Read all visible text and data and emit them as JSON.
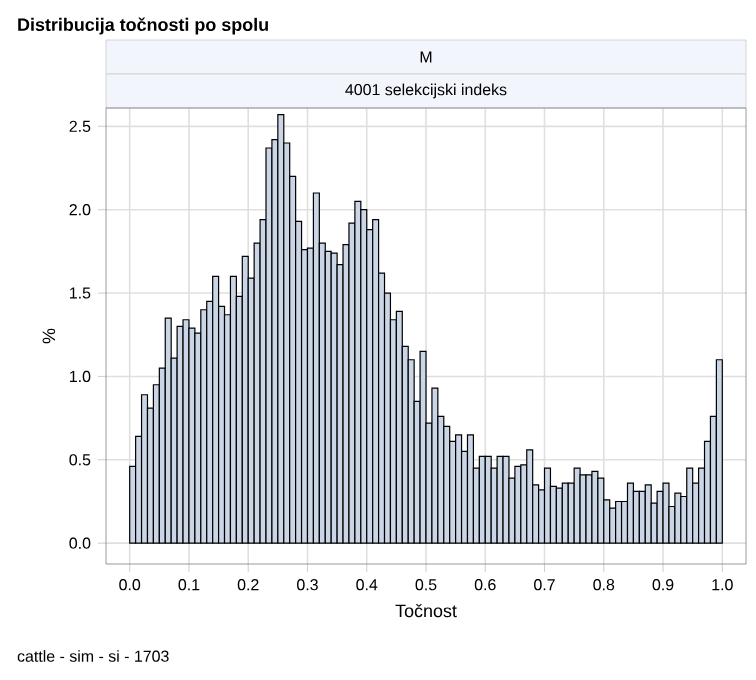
{
  "chart_data": {
    "type": "histogram",
    "title": "Distribucija točnosti po spolu",
    "subtitle": "M",
    "annotations": [
      "4001 selekcijski indeks",
      "cattle - sim - si - 1703"
    ],
    "xlabel": "Točnost",
    "ylabel": "%",
    "bins": [
      0,
      0.01,
      0.02,
      0.03,
      0.04,
      0.05,
      0.06,
      0.07,
      0.08,
      0.09,
      0.1,
      0.11,
      0.12,
      0.13,
      0.14,
      0.15,
      0.16,
      0.17,
      0.18,
      0.19,
      0.2,
      0.21,
      0.22,
      0.23,
      0.24,
      0.25,
      0.26,
      0.27,
      0.28,
      0.29,
      0.3,
      0.31,
      0.32,
      0.33,
      0.34,
      0.35,
      0.36,
      0.37,
      0.38,
      0.39,
      0.4,
      0.41,
      0.42,
      0.43,
      0.44,
      0.45,
      0.46,
      0.47,
      0.48,
      0.49,
      0.5,
      0.51,
      0.52,
      0.53,
      0.54,
      0.55,
      0.56,
      0.57,
      0.58,
      0.59,
      0.6,
      0.61,
      0.62,
      0.63,
      0.64,
      0.65,
      0.66,
      0.67,
      0.68,
      0.69,
      0.7,
      0.71,
      0.72,
      0.73,
      0.74,
      0.75,
      0.76,
      0.77,
      0.78,
      0.79,
      0.8,
      0.81,
      0.82,
      0.83,
      0.84,
      0.85,
      0.86,
      0.87,
      0.88,
      0.89,
      0.9,
      0.91,
      0.92,
      0.93,
      0.94,
      0.95,
      0.96,
      0.97,
      0.98,
      0.99,
      1.0
    ],
    "values": [
      0.46,
      0.64,
      0.89,
      0.81,
      0.95,
      1.05,
      1.35,
      1.11,
      1.3,
      1.34,
      1.29,
      1.26,
      1.4,
      1.45,
      1.6,
      1.42,
      1.37,
      1.6,
      1.48,
      1.72,
      1.59,
      1.8,
      1.94,
      2.37,
      2.42,
      2.57,
      2.4,
      2.2,
      1.93,
      1.76,
      1.77,
      2.1,
      1.8,
      1.75,
      1.74,
      1.67,
      1.79,
      1.92,
      2.05,
      2.0,
      1.88,
      1.94,
      1.62,
      1.5,
      1.34,
      1.39,
      1.18,
      1.1,
      0.85,
      1.15,
      0.72,
      0.93,
      0.76,
      0.7,
      0.61,
      0.65,
      0.55,
      0.65,
      0.45,
      0.52,
      0.52,
      0.45,
      0.52,
      0.52,
      0.39,
      0.46,
      0.47,
      0.56,
      0.35,
      0.32,
      0.45,
      0.34,
      0.33,
      0.36,
      0.36,
      0.45,
      0.41,
      0.41,
      0.43,
      0.39,
      0.26,
      0.21,
      0.25,
      0.25,
      0.36,
      0.31,
      0.31,
      0.35,
      0.24,
      0.31,
      0.36,
      0.22,
      0.3,
      0.28,
      0.45,
      0.36,
      0.45,
      0.61,
      0.76,
      1.1
    ],
    "color": "#cad5e5",
    "xlim": [
      -0.04,
      1.04
    ],
    "ylim": [
      -0.125,
      2.61
    ],
    "xticks": [
      {
        "value": 0,
        "label": "0.0"
      },
      0.1,
      0.2,
      0.3,
      0.4,
      0.5,
      0.6,
      0.7,
      0.8,
      0.9,
      {
        "value": 1,
        "label": "1.0"
      }
    ],
    "yticks": [
      {
        "value": 0,
        "label": "0.0"
      },
      0.5,
      {
        "value": 1,
        "label": "1.0"
      },
      1.5,
      {
        "value": 2,
        "label": "2.0"
      },
      2.5
    ],
    "grid": true
  }
}
